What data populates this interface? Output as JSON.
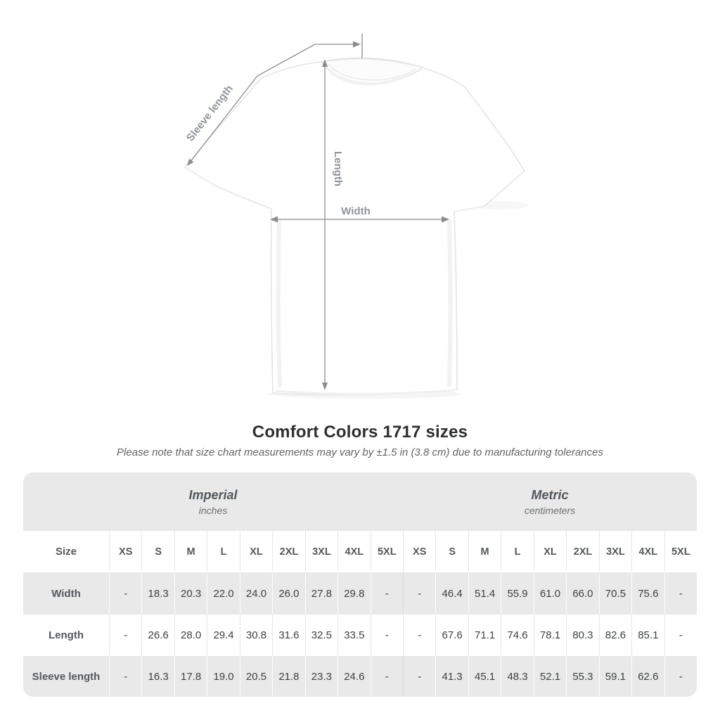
{
  "diagram": {
    "labels": {
      "sleeve_length": "Sleeve length",
      "length": "Length",
      "width": "Width"
    },
    "line_color": "#8c8c8c",
    "label_color": "#90959a"
  },
  "title": "Comfort Colors 1717 sizes",
  "subtitle": "Please note that size chart measurements may vary by ±1.5 in (3.8 cm) due to manufacturing tolerances",
  "size_chart": {
    "unit_groups": [
      {
        "name": "Imperial",
        "unit": "inches"
      },
      {
        "name": "Metric",
        "unit": "centimeters"
      }
    ],
    "corner_label": "Size",
    "sizes": [
      "XS",
      "S",
      "M",
      "L",
      "XL",
      "2XL",
      "3XL",
      "4XL",
      "5XL"
    ],
    "rows": [
      {
        "label": "Width",
        "imperial": [
          "-",
          "18.3",
          "20.3",
          "22.0",
          "24.0",
          "26.0",
          "27.8",
          "29.8",
          "-"
        ],
        "metric": [
          "-",
          "46.4",
          "51.4",
          "55.9",
          "61.0",
          "66.0",
          "70.5",
          "75.6",
          "-"
        ]
      },
      {
        "label": "Length",
        "imperial": [
          "-",
          "26.6",
          "28.0",
          "29.4",
          "30.8",
          "31.6",
          "32.5",
          "33.5",
          "-"
        ],
        "metric": [
          "-",
          "67.6",
          "71.1",
          "74.6",
          "78.1",
          "80.3",
          "82.6",
          "85.1",
          "-"
        ]
      },
      {
        "label": "Sleeve length",
        "imperial": [
          "-",
          "16.3",
          "17.8",
          "19.0",
          "20.5",
          "21.8",
          "23.3",
          "24.6",
          "-"
        ],
        "metric": [
          "-",
          "41.3",
          "45.1",
          "48.3",
          "52.1",
          "55.3",
          "59.1",
          "62.6",
          "-"
        ]
      }
    ],
    "colors": {
      "band_bg": "#e9e9e9",
      "alt_row_bg": "#e9e9e9",
      "header_text": "#54585c",
      "value_text": "#3d4043"
    }
  }
}
